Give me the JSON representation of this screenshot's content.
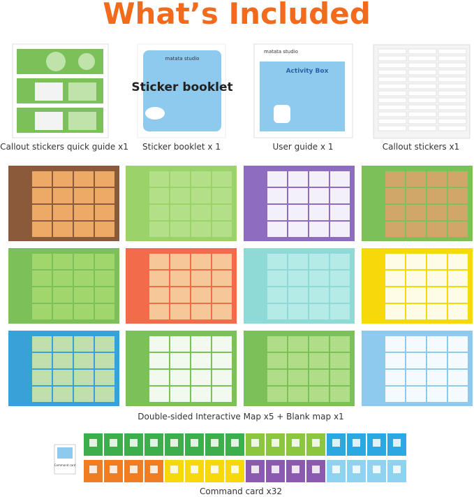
{
  "header": {
    "title": "What’s Included"
  },
  "items": [
    {
      "caption": "Callout stickers quick guide x1"
    },
    {
      "caption": "Sticker booklet x 1",
      "brand": "matata studio",
      "label": "Sticker booklet"
    },
    {
      "caption": "User guide x 1",
      "brand": "matata studio",
      "label": "Activity Box"
    },
    {
      "caption": "Callout stickers x1"
    }
  ],
  "maps": {
    "caption": "Double-sided Interactive Map x5 + Blank map x1"
  },
  "cards": {
    "caption": "Command card x32",
    "label": "Command card"
  }
}
